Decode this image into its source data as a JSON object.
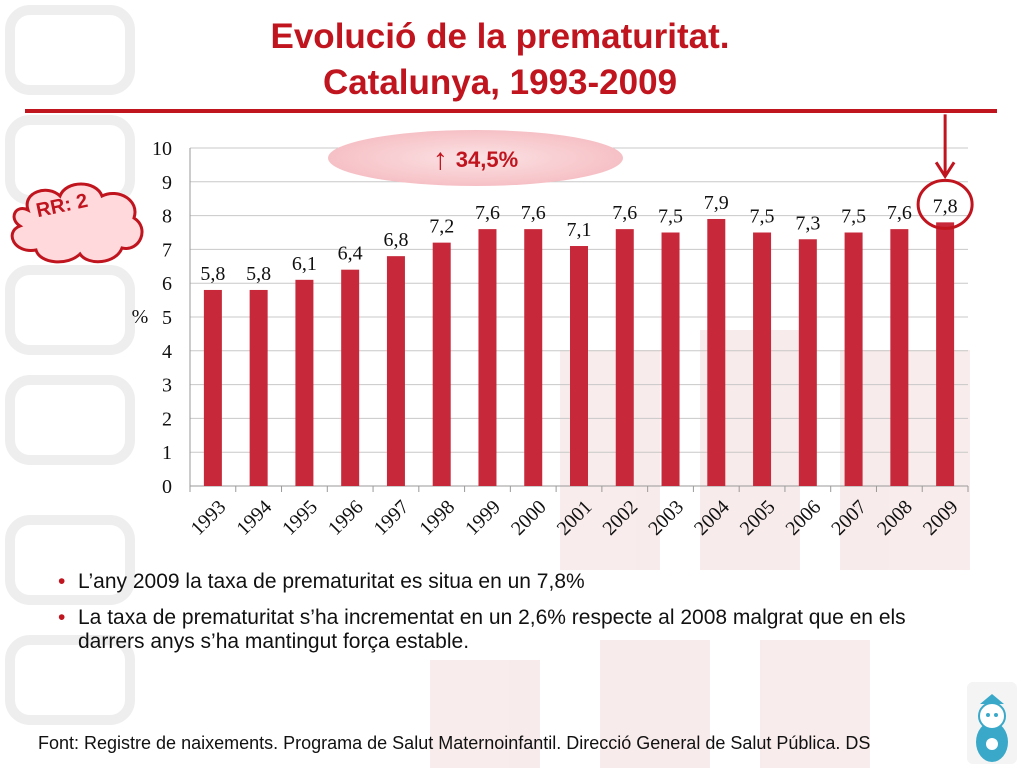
{
  "title_line1": "Evolució de la prematuritat.",
  "title_line2": "Catalunya, 1993-2009",
  "increase_badge": {
    "arrow": "↑",
    "text": "34,5%"
  },
  "rr_label": "RR: 2",
  "bullets": [
    "L’any 2009 la taxa de prematuritat es situa en un 7,8%",
    "La taxa de prematuritat s’ha incrementat en un 2,6% respecte al 2008 malgrat que en els darrers anys s’ha mantingut força estable."
  ],
  "bullet_marker": "•",
  "source": "Font: Registre de naixements. Programa de Salut Maternoinfantil. Direcció General de Salut Pública. DS",
  "colors": {
    "accent": "#c0141e",
    "bar": "#c7293a",
    "highlight": "#c0141e"
  },
  "chart_data": {
    "type": "bar",
    "title": "",
    "xlabel": "",
    "ylabel": "%",
    "ylim": [
      0,
      10
    ],
    "yticks": [
      "0",
      "1",
      "2",
      "3",
      "4",
      "5",
      "6",
      "7",
      "8",
      "9",
      "10"
    ],
    "grid": true,
    "highlight_category": "2009",
    "categories": [
      "1993",
      "1994",
      "1995",
      "1996",
      "1997",
      "1998",
      "1999",
      "2000",
      "2001",
      "2002",
      "2003",
      "2004",
      "2005",
      "2006",
      "2007",
      "2008",
      "2009"
    ],
    "values": [
      5.8,
      5.8,
      6.1,
      6.4,
      6.8,
      7.2,
      7.6,
      7.6,
      7.1,
      7.6,
      7.5,
      7.9,
      7.5,
      7.3,
      7.5,
      7.6,
      7.8
    ],
    "data_labels": [
      "5,8",
      "5,8",
      "6,1",
      "6,4",
      "6,8",
      "7,2",
      "7,6",
      "7,6",
      "7,1",
      "7,6",
      "7,5",
      "7,9",
      "7,5",
      "7,3",
      "7,5",
      "7,6",
      "7,8"
    ]
  }
}
